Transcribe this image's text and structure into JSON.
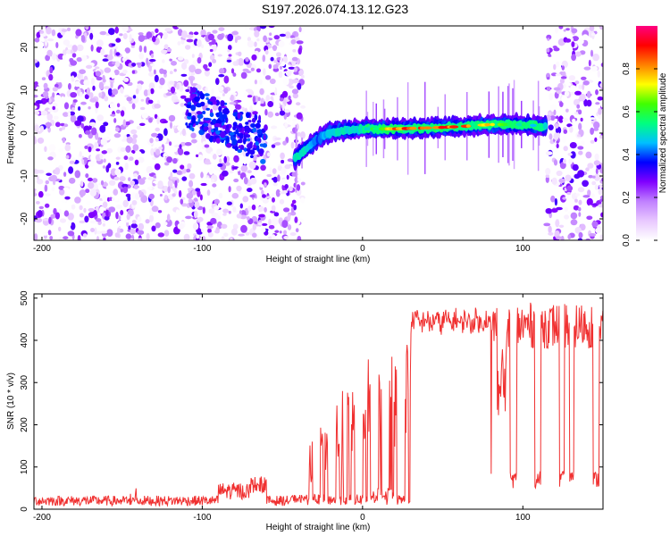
{
  "title": "S197.2026.074.13.12.G23",
  "chart_data": [
    {
      "type": "heatmap",
      "xlabel": "Height of straight line (km)",
      "ylabel": "Frequency (Hz)",
      "xlim": [
        -205,
        150
      ],
      "ylim": [
        -25,
        25
      ],
      "xticks": [
        -200,
        -100,
        0,
        100
      ],
      "yticks": [
        -20,
        -10,
        0,
        10,
        20
      ],
      "colorbar": {
        "label": "Normalized spectral amplitude",
        "range": [
          0,
          1
        ],
        "ticks": [
          "0.0",
          "0.2",
          "0.4",
          "0.6",
          "0.8"
        ],
        "colors": [
          "#ffffff",
          "#e8c8ff",
          "#c080ff",
          "#8000ff",
          "#0000ff",
          "#00c0ff",
          "#00ff80",
          "#40ff00",
          "#ffff00",
          "#ff8000",
          "#ff0000",
          "#ff0080"
        ]
      },
      "noise_regions": [
        {
          "x_start": -205,
          "x_end": -37,
          "density": "high"
        },
        {
          "x_start": 115,
          "x_end": 150,
          "density": "high"
        }
      ],
      "signal_track": {
        "x": [
          -42,
          -35,
          -28,
          -22,
          -15,
          -8,
          0,
          20,
          40,
          60,
          80,
          100,
          115
        ],
        "frequency": [
          -6,
          -3.5,
          -1.5,
          0,
          0.5,
          0.8,
          1,
          1,
          1.2,
          1.5,
          2,
          2,
          1.5
        ],
        "peak_amplitude": [
          0.5,
          0.5,
          0.4,
          0.45,
          0.5,
          0.5,
          0.5,
          0.9,
          0.95,
          0.9,
          0.85,
          0.6,
          0.5
        ]
      },
      "diffuse_feature": {
        "x_start": -110,
        "x_end": -60,
        "frequency_start": 6,
        "frequency_end": -2
      }
    },
    {
      "type": "line",
      "xlabel": "Height of straight line (km)",
      "ylabel": "SNR (10 * v/v)",
      "xlim": [
        -205,
        150
      ],
      "ylim": [
        0,
        510
      ],
      "xticks": [
        -200,
        -100,
        0,
        100
      ],
      "yticks": [
        0,
        100,
        200,
        300,
        400,
        500
      ],
      "line_color": "#f03030",
      "series": [
        {
          "name": "SNR",
          "segments": [
            {
              "x_start": -205,
              "x_end": -35,
              "level": 20,
              "noise": 12
            },
            {
              "x_start": -90,
              "x_end": -70,
              "level": 35,
              "noise": 25
            },
            {
              "x_start": -70,
              "x_end": -60,
              "level": 55,
              "noise": 30
            },
            {
              "x_start": -35,
              "x_end": 30,
              "level": "intermittent",
              "max": 480
            },
            {
              "x_start": 30,
              "x_end": 80,
              "level": 445,
              "noise": 25
            },
            {
              "x_start": 80,
              "x_end": 150,
              "level": "intermittent",
              "max": 500
            }
          ]
        }
      ]
    }
  ]
}
